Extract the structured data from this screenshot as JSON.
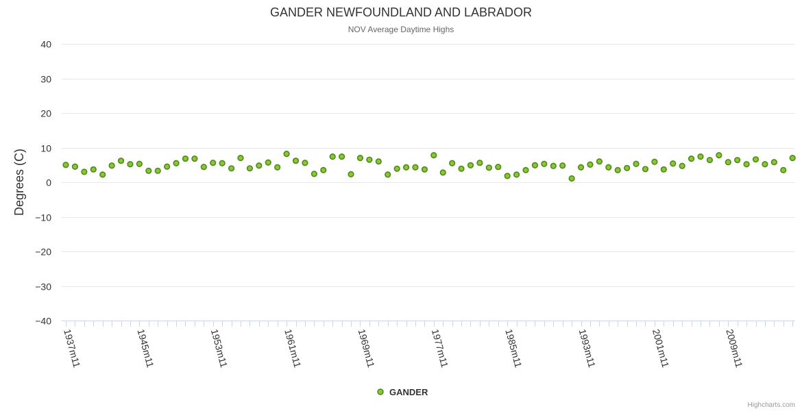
{
  "chart_data": {
    "type": "scatter",
    "title": "GANDER NEWFOUNDLAND AND LABRADOR",
    "subtitle": "NOV Average Daytime Highs",
    "ylabel": "Degrees (C)",
    "xlabel": "",
    "ylim": [
      -40,
      40
    ],
    "ytick_values": [
      40,
      30,
      20,
      10,
      0,
      -10,
      -20,
      -30,
      -40
    ],
    "ytick_labels": [
      "40",
      "30",
      "20",
      "10",
      "0",
      "−10",
      "−20",
      "−30",
      "−40"
    ],
    "x_start_year": 1937,
    "x_tick_labels": [
      "1937m11",
      "1945m11",
      "1953m11",
      "1961m11",
      "1969m11",
      "1977m11",
      "1985m11",
      "1993m11",
      "2001m11",
      "2009m11"
    ],
    "legend_position": "bottom-center",
    "series": [
      {
        "name": "GANDER",
        "color": "#8ac53f",
        "edge_color": "#4f8a10",
        "values": [
          5.0,
          4.5,
          3.0,
          3.7,
          2.2,
          4.8,
          6.2,
          5.2,
          5.3,
          3.3,
          3.3,
          4.5,
          5.5,
          6.8,
          6.8,
          4.4,
          5.6,
          5.5,
          4.0,
          7.0,
          4.0,
          4.8,
          5.7,
          4.3,
          8.2,
          6.2,
          5.6,
          2.4,
          3.5,
          7.4,
          7.4,
          2.3,
          7.0,
          6.5,
          6.0,
          2.2,
          3.9,
          4.3,
          4.3,
          3.7,
          7.8,
          2.8,
          5.5,
          3.9,
          4.9,
          5.6,
          4.2,
          4.4,
          1.8,
          2.2,
          3.5,
          4.9,
          5.3,
          4.7,
          4.8,
          1.1,
          4.3,
          5.1,
          6.0,
          4.3,
          3.5,
          4.1,
          5.3,
          3.8,
          5.9,
          3.7,
          5.4,
          4.7,
          6.8,
          7.4,
          6.4,
          7.8,
          5.8,
          6.4,
          5.2,
          6.6,
          5.2,
          5.8,
          3.5,
          7.0
        ]
      }
    ]
  },
  "credits": "Highcharts.com"
}
